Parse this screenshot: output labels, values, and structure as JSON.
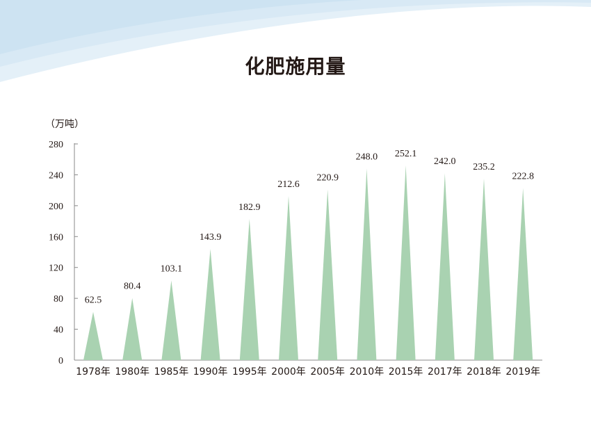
{
  "chart_data": {
    "type": "bar",
    "title": "化肥施用量",
    "ylabel": "（万吨）",
    "xlabel": "",
    "categories": [
      "1978年",
      "1980年",
      "1985年",
      "1990年",
      "1995年",
      "2000年",
      "2005年",
      "2010年",
      "2015年",
      "2017年",
      "2018年",
      "2019年"
    ],
    "values": [
      62.5,
      80.4,
      103.1,
      143.9,
      182.9,
      212.6,
      220.9,
      248.0,
      252.1,
      242.0,
      235.2,
      222.8
    ],
    "value_labels": [
      "62.5",
      "80.4",
      "103.1",
      "143.9",
      "182.9",
      "212.6",
      "220.9",
      "248.0",
      "252.1",
      "242.0",
      "235.2",
      "222.8"
    ],
    "yticks": [
      0,
      40,
      80,
      120,
      160,
      200,
      240,
      280
    ],
    "ylim": [
      0,
      280
    ],
    "bar_shape": "triangle",
    "bar_color": "#a9d2b1",
    "grid": false,
    "legend": "none"
  },
  "colors": {
    "bar": "#a9d2b1",
    "axis": "#888888",
    "text": "#231815",
    "swoosh": "#e3eff7"
  }
}
